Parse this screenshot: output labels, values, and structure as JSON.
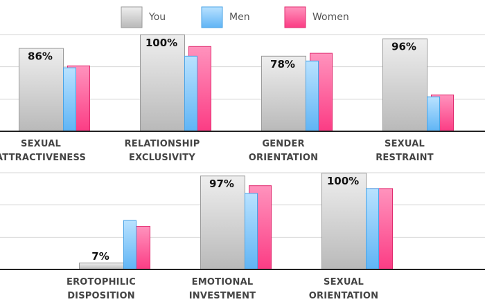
{
  "colors": {
    "you_top": "#eeeeee",
    "you_bottom": "#b9b9b9",
    "you_stroke": "#9a9a9a",
    "men_top": "#b9e2ff",
    "men_bottom": "#5fb4f5",
    "men_stroke": "#4aa3e6",
    "women_top": "#ff93bd",
    "women_bottom": "#fb3c84",
    "women_stroke": "#e02d70",
    "grid": "#d4d4d4",
    "axis": "#222222"
  },
  "chart_data": {
    "type": "bar",
    "legend": {
      "position": "top",
      "entries": [
        "You",
        "Men",
        "Women"
      ]
    },
    "grid": true,
    "ylim": [
      0,
      100
    ],
    "panels": [
      {
        "categories": [
          [
            "SEXUAL",
            "ATTRACTIVENESS"
          ],
          [
            "RELATIONSHIP",
            "EXCLUSIVITY"
          ],
          [
            "GENDER",
            "ORIENTATION"
          ],
          [
            "SEXUAL",
            "RESTRAINT"
          ]
        ],
        "series": [
          {
            "name": "You",
            "values": [
              86,
              100,
              78,
              96
            ]
          },
          {
            "name": "Men",
            "values": [
              66,
              78,
              73,
              36
            ]
          },
          {
            "name": "Women",
            "values": [
              68,
              88,
              81,
              38
            ]
          }
        ],
        "value_labels": [
          "86%",
          "100%",
          "78%",
          "96%"
        ]
      },
      {
        "categories": [
          [
            "EROTOPHILIC",
            "DISPOSITION"
          ],
          [
            "EMOTIONAL",
            "INVESTMENT"
          ],
          [
            "SEXUAL",
            "ORIENTATION"
          ]
        ],
        "series": [
          {
            "name": "You",
            "values": [
              7,
              97,
              100
            ]
          },
          {
            "name": "Men",
            "values": [
              51,
              79,
              84
            ]
          },
          {
            "name": "Women",
            "values": [
              45,
              87,
              84
            ]
          }
        ],
        "value_labels": [
          "7%",
          "97%",
          "100%"
        ]
      }
    ]
  }
}
